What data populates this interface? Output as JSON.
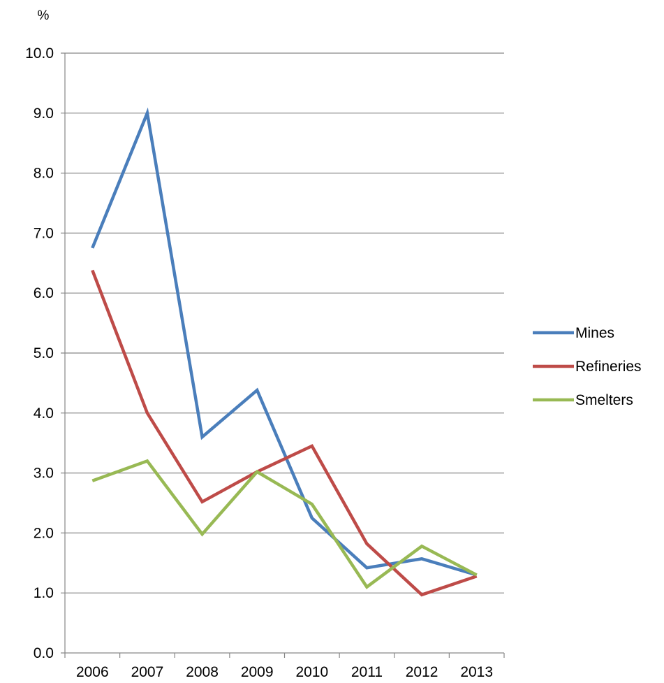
{
  "chart_data": {
    "type": "line",
    "ylabel": "%",
    "xlabel": "",
    "title": "",
    "ylim": [
      0,
      10
    ],
    "ytick_step": 1,
    "ytick_labels": [
      "0.0",
      "1.0",
      "2.0",
      "3.0",
      "4.0",
      "5.0",
      "6.0",
      "7.0",
      "8.0",
      "9.0",
      "10.0"
    ],
    "categories": [
      "2006",
      "2007",
      "2008",
      "2009",
      "2010",
      "2011",
      "2012",
      "2013"
    ],
    "grid": "horizontal",
    "legend_position": "right",
    "series": [
      {
        "name": "Mines",
        "color": "#4a7ebb",
        "values": [
          6.75,
          9.0,
          3.6,
          4.38,
          2.25,
          1.42,
          1.57,
          1.3
        ]
      },
      {
        "name": "Refineries",
        "color": "#be4b48",
        "values": [
          6.38,
          4.0,
          2.52,
          3.02,
          3.45,
          1.82,
          0.97,
          1.28
        ]
      },
      {
        "name": "Smelters",
        "color": "#98b954",
        "values": [
          2.87,
          3.2,
          1.98,
          3.02,
          2.48,
          1.1,
          1.78,
          1.3
        ]
      }
    ]
  }
}
